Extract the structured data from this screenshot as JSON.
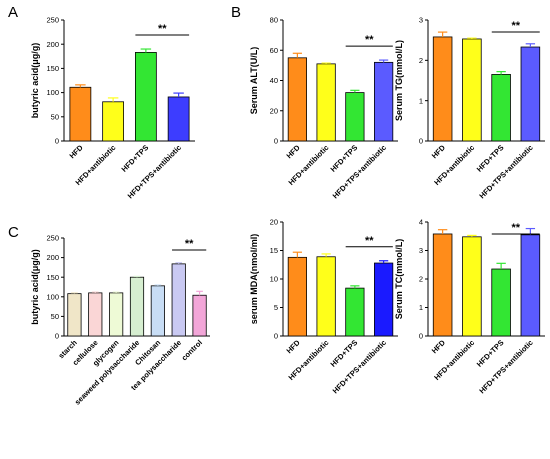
{
  "chart_data": [
    {
      "id": "A1",
      "letter": "A",
      "type": "bar",
      "ylabel": "butyric acid(μg/g)",
      "ylim": [
        0,
        250
      ],
      "yticks": [
        0,
        50,
        100,
        150,
        200,
        250
      ],
      "categories": [
        "HFD",
        "HFD+antibiotic",
        "HFD+TPS",
        "HFD+TPS+antibiotic"
      ],
      "values": [
        111,
        81,
        183,
        91
      ],
      "errors": [
        5,
        8,
        7,
        8
      ],
      "colors": [
        "#FF8C1A",
        "#FFFF1A",
        "#33E633",
        "#3D3DFF"
      ],
      "significance": [
        {
          "from": 2,
          "to": 3,
          "label": "**"
        }
      ]
    },
    {
      "id": "B1",
      "letter": "B",
      "type": "bar",
      "ylabel": "Serum ALT(U/L)",
      "ylim": [
        0,
        80
      ],
      "yticks": [
        0,
        20,
        40,
        60,
        80
      ],
      "categories": [
        "HFD",
        "HFD+antibiotic",
        "HFD+TPS",
        "HFD+TPS+antibiotic"
      ],
      "values": [
        55,
        51,
        32,
        52
      ],
      "errors": [
        3,
        0.5,
        1.5,
        1.5
      ],
      "colors": [
        "#FF8C1A",
        "#FFFF1A",
        "#33E633",
        "#5B5BFF"
      ],
      "significance": [
        {
          "from": 2,
          "to": 3,
          "label": "**"
        }
      ]
    },
    {
      "id": "B2",
      "letter": "",
      "type": "bar",
      "ylabel": "Serum TG(mmol/L)",
      "ylim": [
        0,
        3
      ],
      "yticks": [
        0,
        1,
        2,
        3
      ],
      "categories": [
        "HFD",
        "HFD+antibiotic",
        "HFD+TPS",
        "HFD+TPS+antibiotic"
      ],
      "values": [
        2.58,
        2.53,
        1.65,
        2.33
      ],
      "errors": [
        0.12,
        0.02,
        0.07,
        0.08
      ],
      "colors": [
        "#FF8C1A",
        "#FFFF1A",
        "#33E633",
        "#5B5BFF"
      ],
      "significance": [
        {
          "from": 2,
          "to": 3,
          "label": "**"
        }
      ]
    },
    {
      "id": "C1",
      "letter": "C",
      "type": "bar",
      "ylabel": "butyric acid(μg/g)",
      "ylim": [
        0,
        250
      ],
      "yticks": [
        0,
        50,
        100,
        150,
        200,
        250
      ],
      "categories": [
        "starch",
        "cellulose",
        "glycogen",
        "seaweed polysaccharide",
        "Chitosan",
        "tea polysaccharide",
        "control"
      ],
      "values": [
        108,
        110,
        110,
        150,
        128,
        184,
        104
      ],
      "errors": [
        2,
        2,
        2,
        2,
        2,
        3,
        10
      ],
      "colors": [
        "#F0E6C8",
        "#FAD6D6",
        "#EEFAD6",
        "#D6EED0",
        "#C8DDF5",
        "#C9C9F2",
        "#F2A6D8"
      ],
      "significance": [
        {
          "from": 5,
          "to": 6,
          "label": "**"
        }
      ]
    },
    {
      "id": "B3",
      "letter": "",
      "type": "bar",
      "ylabel": "serum MDA(nmol/ml)",
      "ylim": [
        0,
        20
      ],
      "yticks": [
        0,
        5,
        10,
        15,
        20
      ],
      "categories": [
        "HFD",
        "HFD+antibiotic",
        "HFD+TPS",
        "HFD+TPS+antibiotic"
      ],
      "values": [
        13.8,
        13.9,
        8.4,
        12.8
      ],
      "errors": [
        0.9,
        0.5,
        0.4,
        0.4
      ],
      "colors": [
        "#FF8C1A",
        "#FFFF1A",
        "#33E633",
        "#1A1AFF"
      ],
      "significance": [
        {
          "from": 2,
          "to": 3,
          "label": "**"
        }
      ]
    },
    {
      "id": "B4",
      "letter": "",
      "type": "bar",
      "ylabel": "Serum TC(mmol/L)",
      "ylim": [
        0,
        4
      ],
      "yticks": [
        0,
        1,
        2,
        3,
        4
      ],
      "categories": [
        "HFD",
        "HFD+antibiotic",
        "HFD+TPS",
        "HFD+TPS+antibiotic"
      ],
      "values": [
        3.58,
        3.48,
        2.35,
        3.55
      ],
      "errors": [
        0.15,
        0.05,
        0.2,
        0.22
      ],
      "colors": [
        "#FF8C1A",
        "#FFFF1A",
        "#33E633",
        "#5B5BFF"
      ],
      "significance": [
        {
          "from": 2,
          "to": 3,
          "label": "**"
        }
      ]
    }
  ]
}
